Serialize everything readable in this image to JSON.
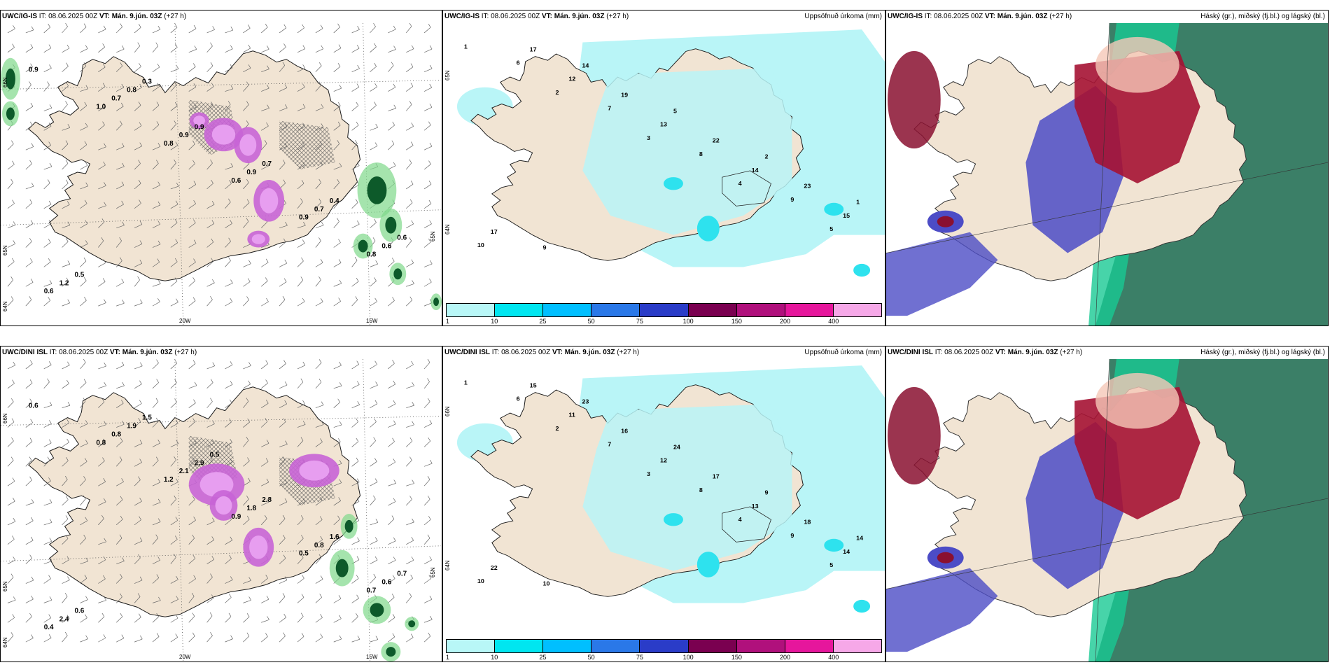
{
  "panels": [
    {
      "model": "UWC/IG-IS",
      "it_label": "IT:",
      "it": "08.06.2025 00Z",
      "vt_label": "VT:",
      "vt": "Mán. 9.jún. 03Z",
      "lead": "(+27 h)",
      "title": "",
      "kind": "precip_wind",
      "lat_labels": [
        "66N",
        "65N",
        "64N"
      ],
      "lon_labels": [
        "20W",
        "15W"
      ],
      "lat_label_right": "65N",
      "values": [
        "0.9",
        "1.0",
        "0.8",
        "0.6",
        "0.9",
        "0.8",
        "0.6",
        "0.7",
        "0.9",
        "0.9",
        "0.7",
        "0.6",
        "1.2",
        "0.8",
        "0.9",
        "0.7",
        "0.4",
        "0.6",
        "0.5",
        "0.3"
      ]
    },
    {
      "model": "UWC/IG-IS",
      "it_label": "IT:",
      "it": "08.06.2025 00Z",
      "vt_label": "VT:",
      "vt": "Mán. 9.jún. 03Z",
      "lead": "(+27 h)",
      "title": "Uppsöfnuð úrkoma (mm)",
      "kind": "accum",
      "lat_labels": [
        "65N",
        "64N"
      ],
      "lon_labels": [],
      "values": [
        "1",
        "2",
        "3",
        "4",
        "5",
        "6",
        "7",
        "8",
        "9",
        "10",
        "12",
        "13",
        "14",
        "15",
        "17",
        "19",
        "22",
        "23",
        "17",
        "14",
        "5",
        "2",
        "1",
        "9"
      ]
    },
    {
      "model": "UWC/IG-IS",
      "it_label": "IT:",
      "it": "08.06.2025 00Z",
      "vt_label": "VT:",
      "vt": "Mán. 9.jún. 03Z",
      "lead": "(+27 h)",
      "title": "Háský (gr.), miðský (fj.bl.) og lágský (bl.)",
      "kind": "cloud",
      "lat_labels": [],
      "lon_labels": [],
      "values": []
    },
    {
      "model": "UWC/DINI ISL",
      "it_label": "IT:",
      "it": "08.06.2025 00Z",
      "vt_label": "VT:",
      "vt": "Mán. 9.jún. 03Z",
      "lead": "(+27 h)",
      "title": "",
      "kind": "precip_wind",
      "lat_labels": [
        "66N",
        "65N",
        "64N"
      ],
      "lon_labels": [
        "20W",
        "15W"
      ],
      "lat_label_right": "65N",
      "values": [
        "0.6",
        "0.8",
        "1.2",
        "0.9",
        "0.5",
        "0.7",
        "0.4",
        "0.8",
        "2.1",
        "1.8",
        "0.8",
        "0.6",
        "2.4",
        "1.9",
        "2.9",
        "2.8",
        "1.6",
        "0.7",
        "0.6",
        "1.5",
        "0.5"
      ]
    },
    {
      "model": "UWC/DINI ISL",
      "it_label": "IT:",
      "it": "08.06.2025 00Z",
      "vt_label": "VT:",
      "vt": "Mán. 9.jún. 03Z",
      "lead": "(+27 h)",
      "title": "Uppsöfnuð úrkoma (mm)",
      "kind": "accum",
      "lat_labels": [
        "66N",
        "64N"
      ],
      "lon_labels": [],
      "values": [
        "1",
        "2",
        "3",
        "4",
        "5",
        "6",
        "7",
        "8",
        "9",
        "10",
        "11",
        "12",
        "13",
        "14",
        "15",
        "16",
        "17",
        "18",
        "22",
        "23",
        "24",
        "9",
        "14",
        "10"
      ]
    },
    {
      "model": "UWC/DINI ISL",
      "it_label": "IT:",
      "it": "08.06.2025 00Z",
      "vt_label": "VT:",
      "vt": "Mán. 9.jún. 03Z",
      "lead": "(+27 h)",
      "title": "Háský (gr.), miðský (fj.bl.) og lágský (bl.)",
      "kind": "cloud",
      "lat_labels": [],
      "lon_labels": [],
      "values": []
    }
  ],
  "colorbar": {
    "ticks": [
      "1",
      "10",
      "25",
      "50",
      "75",
      "100",
      "150",
      "200",
      "400"
    ],
    "colors": [
      "#b8f7f7",
      "#00e6f0",
      "#00bfff",
      "#2a78e8",
      "#2a3cc8",
      "#7a0050",
      "#b0107c",
      "#e6169c",
      "#f6a8e8"
    ]
  },
  "colors": {
    "land": "#f1e4d3",
    "coast": "#1a1a1a",
    "sea": "#ffffff",
    "precip_light": "#b9f5f7",
    "high": "#a51233",
    "mid": "#4c4cc6",
    "low": "#1b9e7e"
  }
}
